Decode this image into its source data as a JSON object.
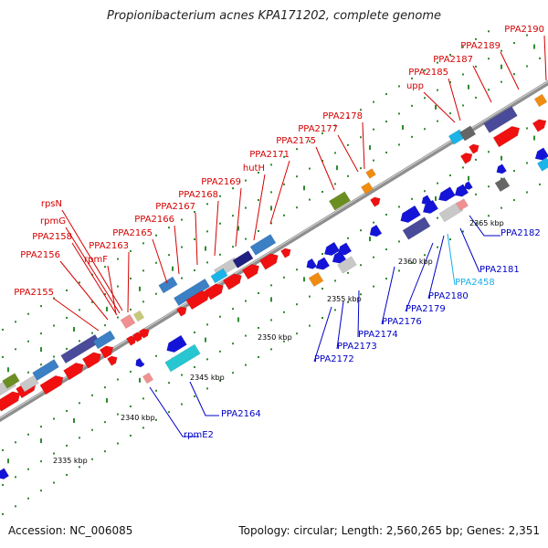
{
  "title": "Propionibacterium acnes KPA171202, complete genome",
  "accession": "Accession: NC_006085",
  "stats": "Topology: circular; Length: 2,560,265 bp; Genes: 2,351",
  "colors": {
    "backbone": "#8f8f8f",
    "tick_green": "#2e8b2e",
    "forward_label": "#d40000",
    "reverse_label": "#0000c8",
    "highlight_label": "#19aeea"
  },
  "kbp_labels": [
    "2335 kbp",
    "2340 kbp",
    "2345 kbp",
    "2350 kbp",
    "2355 kbp",
    "2360 kbp",
    "2365 kbp"
  ],
  "forward_genes": [
    "rpsN",
    "rpmG",
    "PPA2158",
    "PPA2156",
    "rpmF",
    "PPA2163",
    "PPA2155",
    "PPA2165",
    "PPA2166",
    "PPA2167",
    "PPA2168",
    "PPA2169",
    "hutH",
    "PPA2171",
    "PPA2175",
    "PPA2177",
    "PPA2178",
    "upp",
    "PPA2185",
    "PPA2187",
    "PPA2189",
    "PPA2190"
  ],
  "reverse_genes": [
    "rpmE2",
    "PPA2164",
    "PPA2172",
    "PPA2173",
    "PPA2174",
    "PPA2176",
    "PPA2179",
    "PPA2180",
    "PPA2458",
    "PPA2181",
    "PPA2182"
  ]
}
